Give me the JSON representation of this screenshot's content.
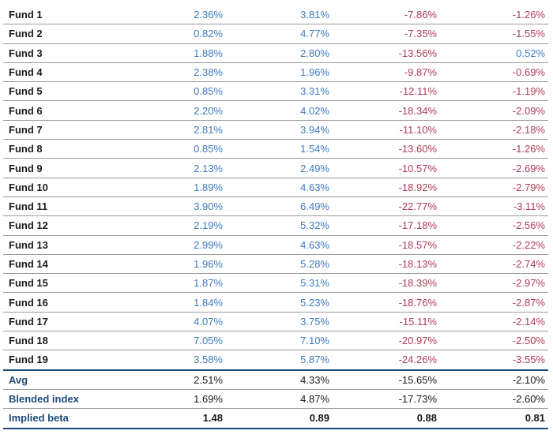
{
  "funds": [
    {
      "name": "Fund 1",
      "c1": "2.36%",
      "c2": "3.81%",
      "c3": "-7.86%",
      "c4": "-1.26%"
    },
    {
      "name": "Fund 2",
      "c1": "0.82%",
      "c2": "4.77%",
      "c3": "-7.35%",
      "c4": "-1.55%"
    },
    {
      "name": "Fund 3",
      "c1": "1.88%",
      "c2": "2.80%",
      "c3": "-13.56%",
      "c4": "0.52%"
    },
    {
      "name": "Fund 4",
      "c1": "2.38%",
      "c2": "1.96%",
      "c3": "-9.87%",
      "c4": "-0.69%"
    },
    {
      "name": "Fund 5",
      "c1": "0.85%",
      "c2": "3.31%",
      "c3": "-12.11%",
      "c4": "-1.19%"
    },
    {
      "name": "Fund 6",
      "c1": "2.20%",
      "c2": "4.02%",
      "c3": "-18.34%",
      "c4": "-2.09%"
    },
    {
      "name": "Fund 7",
      "c1": "2.81%",
      "c2": "3.94%",
      "c3": "-11.10%",
      "c4": "-2.18%"
    },
    {
      "name": "Fund 8",
      "c1": "0.85%",
      "c2": "1.54%",
      "c3": "-13.60%",
      "c4": "-1.26%"
    },
    {
      "name": "Fund 9",
      "c1": "2.13%",
      "c2": "2.49%",
      "c3": "-10.57%",
      "c4": "-2.69%"
    },
    {
      "name": "Fund 10",
      "c1": "1.89%",
      "c2": "4.63%",
      "c3": "-18.92%",
      "c4": "-2.79%"
    },
    {
      "name": "Fund 11",
      "c1": "3.90%",
      "c2": "6.49%",
      "c3": "-22.77%",
      "c4": "-3.11%"
    },
    {
      "name": "Fund 12",
      "c1": "2.19%",
      "c2": "5.32%",
      "c3": "-17.18%",
      "c4": "-2.56%"
    },
    {
      "name": "Fund 13",
      "c1": "2.99%",
      "c2": "4.63%",
      "c3": "-18.57%",
      "c4": "-2.22%"
    },
    {
      "name": "Fund 14",
      "c1": "1.96%",
      "c2": "5.28%",
      "c3": "-18.13%",
      "c4": "-2.74%"
    },
    {
      "name": "Fund 15",
      "c1": "1.87%",
      "c2": "5.31%",
      "c3": "-18.39%",
      "c4": "-2.97%"
    },
    {
      "name": "Fund 16",
      "c1": "1.84%",
      "c2": "5.23%",
      "c3": "-18.76%",
      "c4": "-2.87%"
    },
    {
      "name": "Fund 17",
      "c1": "4.07%",
      "c2": "3.75%",
      "c3": "-15.11%",
      "c4": "-2.14%"
    },
    {
      "name": "Fund 18",
      "c1": "7.05%",
      "c2": "7.10%",
      "c3": "-20.97%",
      "c4": "-2.50%"
    },
    {
      "name": "Fund 19",
      "c1": "3.58%",
      "c2": "5.87%",
      "c3": "-24.26%",
      "c4": "-3.55%"
    }
  ],
  "summary": [
    {
      "name": "Avg",
      "c1": "2.51%",
      "c2": "4.33%",
      "c3": "-15.65%",
      "c4": "-2.10%"
    },
    {
      "name": "Blended index",
      "c1": "1.69%",
      "c2": "4.87%",
      "c3": "-17.73%",
      "c4": "-2.60%"
    }
  ],
  "beta": {
    "name": "Implied beta",
    "c1": "1.48",
    "c2": "0.89",
    "c3": "0.88",
    "c4": "0.81"
  },
  "colors": {
    "positive": "#3f7bbf",
    "negative": "#b23a5b",
    "navy": "#1f4a7a",
    "rule": "#9a9a9a"
  }
}
